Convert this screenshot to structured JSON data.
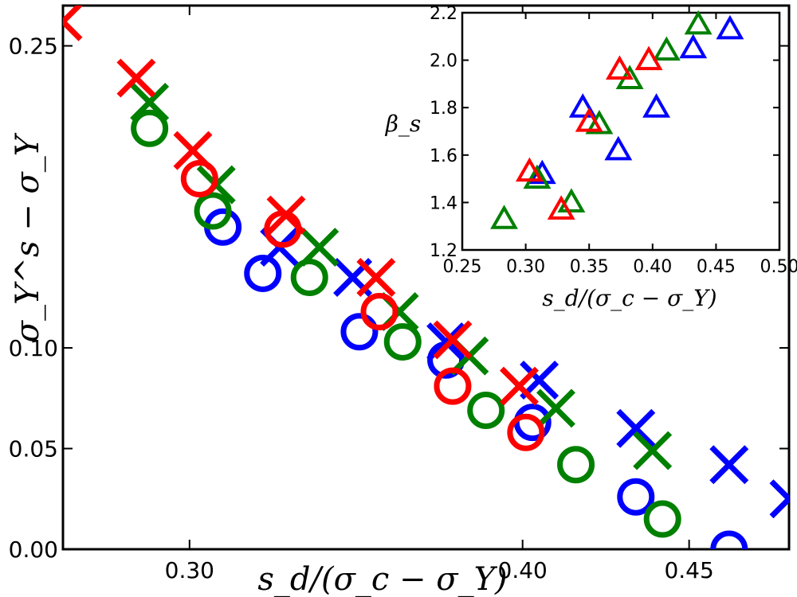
{
  "chart_data": [
    {
      "type": "scatter",
      "title": "",
      "xlabel": "s_d/(σ_c − σ_Y)",
      "ylabel": "σ_Y^s − σ_Y",
      "xlim": [
        0.262,
        0.48
      ],
      "ylim": [
        0.0,
        0.27
      ],
      "xticks": [
        0.3,
        0.4,
        0.45
      ],
      "xtick_labels": [
        "0.30",
        "0.40",
        "0.45"
      ],
      "yticks": [
        0.0,
        0.05,
        0.1,
        0.25
      ],
      "ytick_labels": [
        "0.00",
        "0.05",
        "0.10",
        "0.25"
      ],
      "series": [
        {
          "name": "blue-cross",
          "color": "#0000ff",
          "marker": "x",
          "x": [
            0.327,
            0.349,
            0.377,
            0.405,
            0.434,
            0.462,
            0.48
          ],
          "y": [
            0.15,
            0.135,
            0.103,
            0.084,
            0.06,
            0.042,
            0.025
          ]
        },
        {
          "name": "blue-circle",
          "color": "#0000ff",
          "marker": "o",
          "x": [
            0.31,
            0.322,
            0.351,
            0.377,
            0.403,
            0.434,
            0.462
          ],
          "y": [
            0.16,
            0.137,
            0.108,
            0.094,
            0.063,
            0.026,
            0.0
          ]
        },
        {
          "name": "green-cross",
          "color": "#008000",
          "marker": "x",
          "x": [
            0.288,
            0.308,
            0.339,
            0.363,
            0.384,
            0.41,
            0.439
          ],
          "y": [
            0.222,
            0.181,
            0.15,
            0.118,
            0.096,
            0.07,
            0.049
          ]
        },
        {
          "name": "green-circle",
          "color": "#008000",
          "marker": "o",
          "x": [
            0.288,
            0.307,
            0.336,
            0.364,
            0.389,
            0.416,
            0.442
          ],
          "y": [
            0.209,
            0.168,
            0.135,
            0.103,
            0.069,
            0.042,
            0.015
          ]
        },
        {
          "name": "red-cross",
          "color": "#ff0000",
          "marker": "x",
          "x": [
            0.262,
            0.284,
            0.301,
            0.329,
            0.356,
            0.379,
            0.399
          ],
          "y": [
            0.262,
            0.234,
            0.198,
            0.166,
            0.135,
            0.104,
            0.081
          ]
        },
        {
          "name": "red-circle",
          "color": "#ff0000",
          "marker": "o",
          "x": [
            0.303,
            0.328,
            0.357,
            0.379,
            0.401
          ],
          "y": [
            0.184,
            0.159,
            0.118,
            0.081,
            0.058
          ]
        }
      ]
    },
    {
      "type": "scatter",
      "title": "",
      "xlabel": "s_d/(σ_c − σ_Y)",
      "ylabel": "β_s",
      "xlim": [
        0.25,
        0.5
      ],
      "ylim": [
        1.2,
        2.2
      ],
      "xticks": [
        0.25,
        0.3,
        0.35,
        0.4,
        0.45,
        0.5
      ],
      "xtick_labels": [
        "0.25",
        "0.30",
        "0.35",
        "0.40",
        "0.45",
        "0.50"
      ],
      "yticks": [
        1.2,
        1.4,
        1.6,
        1.8,
        2.0,
        2.2
      ],
      "ytick_labels": [
        "1.2",
        "1.4",
        "1.6",
        "1.8",
        "2.0",
        "2.2"
      ],
      "series": [
        {
          "name": "blue-triangle",
          "color": "#0000ff",
          "marker": "^",
          "x": [
            0.313,
            0.345,
            0.373,
            0.403,
            0.432,
            0.461
          ],
          "y": [
            1.52,
            1.8,
            1.62,
            1.8,
            2.05,
            2.13
          ]
        },
        {
          "name": "green-triangle",
          "color": "#008000",
          "marker": "^",
          "x": [
            0.283,
            0.309,
            0.336,
            0.358,
            0.382,
            0.411,
            0.436
          ],
          "y": [
            1.33,
            1.5,
            1.4,
            1.73,
            1.92,
            2.04,
            2.15
          ]
        },
        {
          "name": "red-triangle",
          "color": "#ff0000",
          "marker": "^",
          "x": [
            0.303,
            0.328,
            0.35,
            0.374,
            0.397
          ],
          "y": [
            1.53,
            1.37,
            1.74,
            1.96,
            2.0
          ]
        }
      ]
    }
  ]
}
